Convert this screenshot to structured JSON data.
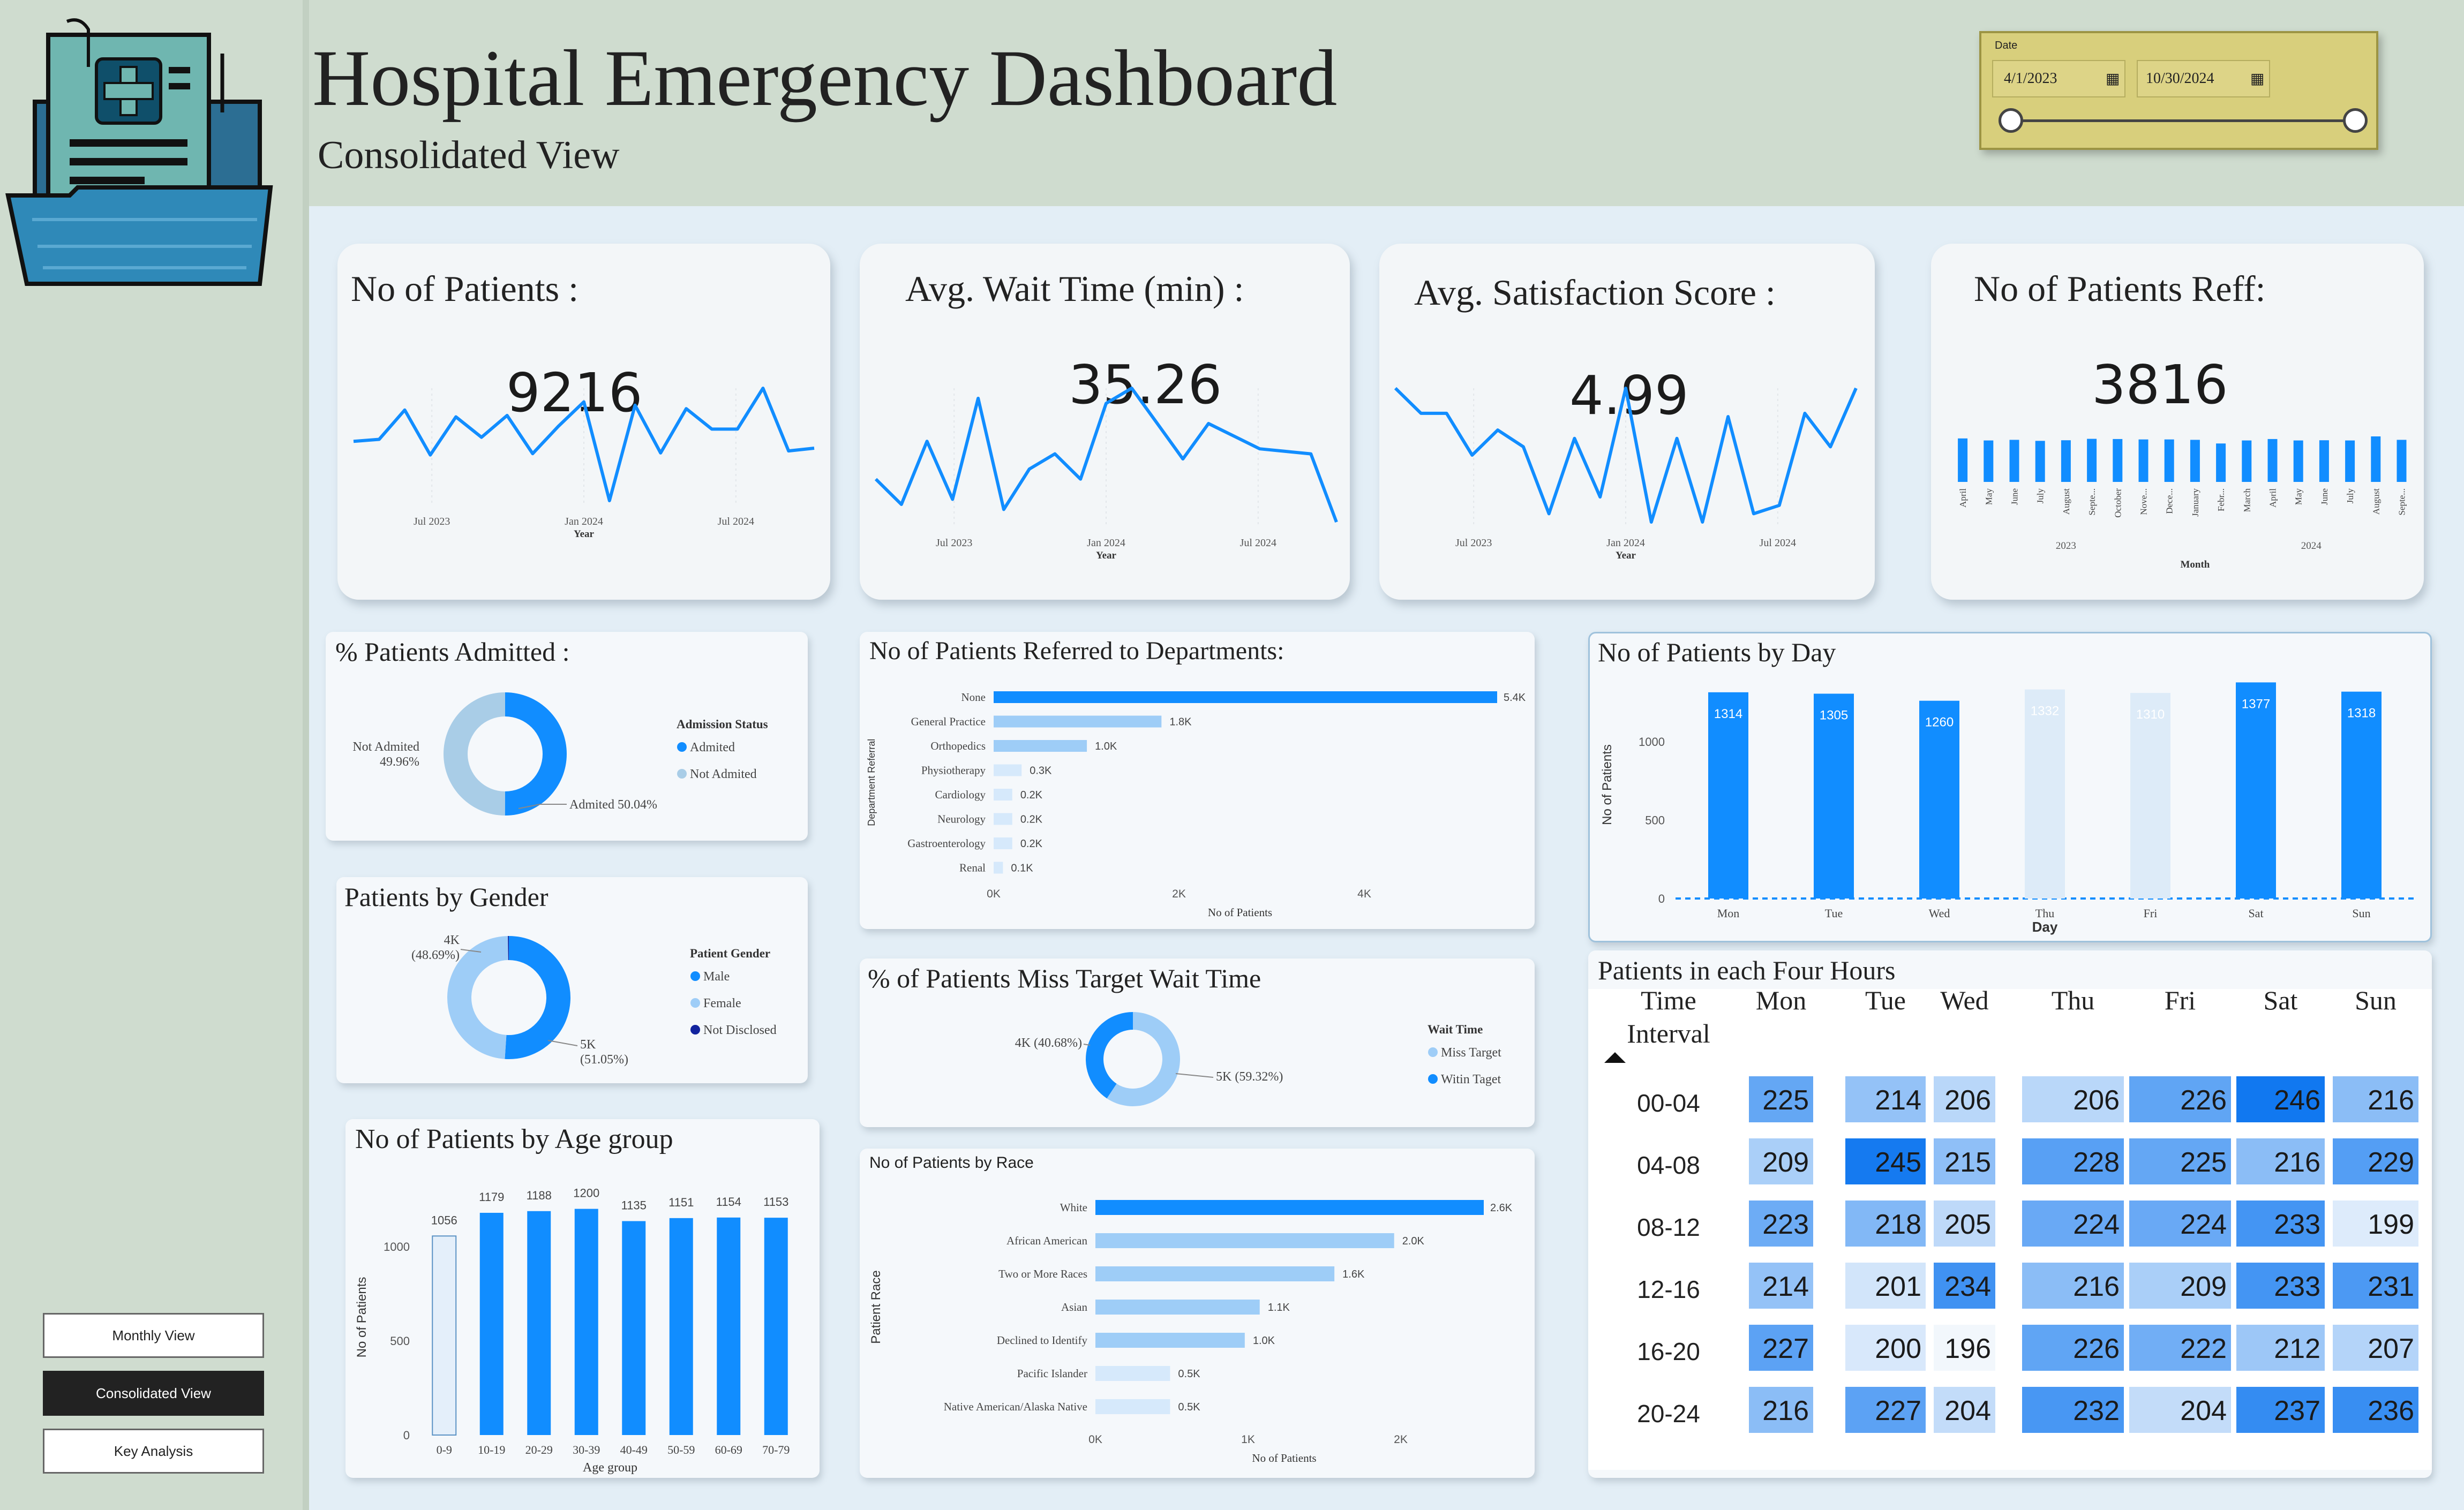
{
  "header": {
    "title": "Hospital Emergency Dashboard",
    "subtitle": "Consolidated View"
  },
  "date_filter": {
    "label": "Date",
    "start": "4/1/2023",
    "end": "10/30/2024"
  },
  "nav": {
    "monthly": "Monthly View",
    "consolidated": "Consolidated View",
    "key": "Key Analysis"
  },
  "colors": {
    "accent": "#118DFF",
    "light": "#9ECDF7",
    "lighter": "#D6E9FB",
    "sidebar": "#CFDCCF",
    "filter": "#D8CF7C"
  },
  "kpis": {
    "patients": {
      "title": "No of Patients :",
      "value": "9216"
    },
    "wait": {
      "title": "Avg. Wait Time (min) :",
      "value": "35.26"
    },
    "satisfaction": {
      "title": "Avg. Satisfaction Score :",
      "value": "4.99"
    },
    "referred": {
      "title": "No of Patients Reff:",
      "value": "3816"
    }
  },
  "panels": {
    "admitted": "% Patients Admitted :",
    "gender": "Patients by Gender",
    "age": "No of Patients by Age group",
    "departments": "No of Patients Referred to Departments:",
    "miss": "% of Patients Miss Target Wait Time",
    "race": "No of Patients by Race",
    "day": "No of Patients by Day",
    "hours": "Patients in each Four Hours"
  },
  "chart_data": [
    {
      "id": "kpi_patients_trend",
      "type": "line",
      "x_ticks": [
        "Jul 2023",
        "Jan 2024",
        "Jul 2024"
      ],
      "xlabel": "Year",
      "values": [
        492,
        495,
        538,
        472,
        528,
        498,
        530,
        474,
        514,
        550,
        405,
        545,
        475,
        540,
        510,
        510,
        570,
        478,
        482
      ]
    },
    {
      "id": "kpi_wait_trend",
      "type": "line",
      "x_ticks": [
        "Jul 2023",
        "Jan 2024",
        "Jul 2024"
      ],
      "xlabel": "Year",
      "values": [
        34.0,
        33.0,
        35.5,
        33.2,
        37.2,
        32.8,
        34.4,
        35.0,
        34.0,
        37.0,
        37.6,
        36.2,
        34.8,
        36.2,
        35.7,
        35.2,
        35.1,
        35.0,
        32.3
      ]
    },
    {
      "id": "kpi_satisfaction_trend",
      "type": "line",
      "x_ticks": [
        "Jul 2023",
        "Jan 2024",
        "Jul 2024"
      ],
      "xlabel": "Year",
      "values": [
        5.25,
        5.1,
        5.1,
        4.85,
        5.0,
        4.9,
        4.5,
        4.95,
        4.6,
        5.25,
        4.45,
        4.95,
        4.45,
        5.08,
        4.5,
        4.55,
        5.1,
        4.9,
        5.25
      ]
    },
    {
      "id": "kpi_referred_monthly",
      "type": "bar",
      "xlabel": "Month",
      "categories": [
        "April",
        "May",
        "June",
        "July",
        "August",
        "Septe...",
        "October",
        "Nove...",
        "Dece...",
        "January",
        "Febr...",
        "March",
        "April",
        "May",
        "June",
        "July",
        "August",
        "Septe...",
        "October"
      ],
      "years": [
        {
          "label": "2023",
          "span": 9
        },
        {
          "label": "2024",
          "span": 10
        }
      ],
      "values": [
        215,
        205,
        208,
        203,
        206,
        213,
        212,
        210,
        210,
        208,
        190,
        205,
        212,
        205,
        206,
        205,
        225,
        208,
        205
      ]
    },
    {
      "id": "admitted",
      "type": "pie",
      "legend_title": "Admission Status",
      "slices": [
        {
          "label": "Admited",
          "value": 50.04,
          "text": "Admited 50.04%"
        },
        {
          "label": "Not Admited",
          "value": 49.96,
          "text": "Not Admited 49.96%"
        }
      ]
    },
    {
      "id": "gender",
      "type": "pie",
      "legend_title": "Patient Gender",
      "slices": [
        {
          "label": "Male",
          "value": 51.05,
          "text": "5K (51.05%)"
        },
        {
          "label": "Female",
          "value": 48.69,
          "text": "4K (48.69%)"
        },
        {
          "label": "Not Disclosed",
          "value": 0.26,
          "text": ""
        }
      ]
    },
    {
      "id": "age",
      "type": "bar",
      "xlabel": "Age group",
      "ylabel": "No of Patients",
      "ylim": [
        0,
        1250
      ],
      "y_ticks": [
        0,
        500,
        1000
      ],
      "categories": [
        "0-9",
        "10-19",
        "20-29",
        "30-39",
        "40-49",
        "50-59",
        "60-69",
        "70-79"
      ],
      "values": [
        1056,
        1179,
        1188,
        1200,
        1135,
        1151,
        1154,
        1153
      ]
    },
    {
      "id": "departments",
      "type": "bar",
      "orientation": "horizontal",
      "xlabel": "No of Patients",
      "ylabel": "Department Referral",
      "xlim": [
        0,
        5400
      ],
      "x_ticks": [
        "0K",
        "2K",
        "4K"
      ],
      "categories": [
        "None",
        "General Practice",
        "Orthopedics",
        "Physiotherapy",
        "Cardiology",
        "Neurology",
        "Gastroenterology",
        "Renal"
      ],
      "values": [
        5400,
        1800,
        1000,
        300,
        200,
        200,
        200,
        100
      ],
      "labels": [
        "5.4K",
        "1.8K",
        "1.0K",
        "0.3K",
        "0.2K",
        "0.2K",
        "0.2K",
        "0.1K"
      ]
    },
    {
      "id": "miss_target",
      "type": "pie",
      "legend_title": "Wait Time",
      "slices": [
        {
          "label": "Miss Target",
          "value": 59.32,
          "text": "5K (59.32%)"
        },
        {
          "label": "Witin Taget",
          "value": 40.68,
          "text": "4K (40.68%)"
        }
      ]
    },
    {
      "id": "race",
      "type": "bar",
      "orientation": "horizontal",
      "xlabel": "No of Patients",
      "ylabel": "Patient Race",
      "xlim": [
        0,
        2600
      ],
      "x_ticks": [
        "0K",
        "1K",
        "2K"
      ],
      "categories": [
        "White",
        "African American",
        "Two or More Races",
        "Asian",
        "Declined to Identify",
        "Pacific Islander",
        "Native American/Alaska Native"
      ],
      "values": [
        2600,
        2000,
        1600,
        1100,
        1000,
        500,
        500
      ],
      "labels": [
        "2.6K",
        "2.0K",
        "1.6K",
        "1.1K",
        "1.0K",
        "0.5K",
        "0.5K"
      ]
    },
    {
      "id": "day",
      "type": "bar",
      "xlabel": "Day",
      "ylabel": "No of Patients",
      "ylim": [
        0,
        1450
      ],
      "y_ticks": [
        0,
        500,
        1000
      ],
      "categories": [
        "Mon",
        "Tue",
        "Wed",
        "Thu",
        "Fri",
        "Sat",
        "Sun"
      ],
      "values": [
        1314,
        1305,
        1260,
        1332,
        1310,
        1377,
        1318
      ]
    },
    {
      "id": "four_hours",
      "type": "heatmap",
      "row_header": "Time Interval",
      "columns": [
        "Mon",
        "Tue",
        "Wed",
        "Thu",
        "Fri",
        "Sat",
        "Sun"
      ],
      "rows": [
        "00-04",
        "04-08",
        "08-12",
        "12-16",
        "16-20",
        "20-24"
      ],
      "values": [
        [
          225,
          214,
          206,
          206,
          226,
          246,
          216
        ],
        [
          209,
          245,
          215,
          228,
          225,
          216,
          229
        ],
        [
          223,
          218,
          205,
          224,
          224,
          233,
          199
        ],
        [
          214,
          201,
          234,
          216,
          209,
          233,
          231
        ],
        [
          227,
          200,
          196,
          226,
          222,
          212,
          207
        ],
        [
          216,
          227,
          204,
          232,
          204,
          237,
          236
        ]
      ]
    }
  ]
}
